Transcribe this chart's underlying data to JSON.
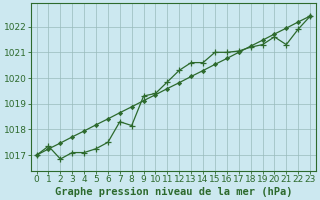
{
  "xlabel": "Graphe pression niveau de la mer (hPa)",
  "background_color": "#cce8f0",
  "plot_bg_color": "#cce8f0",
  "grid_color": "#99bbbb",
  "line_color": "#2d6a2d",
  "marker_color": "#2d6a2d",
  "ylim": [
    1016.4,
    1022.9
  ],
  "yticks": [
    1017,
    1018,
    1019,
    1020,
    1021,
    1022
  ],
  "xticks": [
    0,
    1,
    2,
    3,
    4,
    5,
    6,
    7,
    8,
    9,
    10,
    11,
    12,
    13,
    14,
    15,
    16,
    17,
    18,
    19,
    20,
    21,
    22,
    23
  ],
  "x": [
    0,
    1,
    2,
    3,
    4,
    5,
    6,
    7,
    8,
    9,
    10,
    11,
    12,
    13,
    14,
    15,
    16,
    17,
    18,
    19,
    20,
    21,
    22,
    23
  ],
  "y_main": [
    1017.0,
    1017.35,
    1016.85,
    1017.1,
    1017.1,
    1017.25,
    1017.5,
    1018.3,
    1018.15,
    1019.3,
    1019.4,
    1019.85,
    1020.3,
    1020.6,
    1020.6,
    1021.0,
    1021.0,
    1021.05,
    1021.2,
    1021.3,
    1021.6,
    1021.3,
    1021.9,
    1022.4
  ],
  "y_trend": [
    1017.0,
    1017.24,
    1017.47,
    1017.71,
    1017.94,
    1018.18,
    1018.41,
    1018.65,
    1018.88,
    1019.12,
    1019.35,
    1019.59,
    1019.82,
    1020.06,
    1020.29,
    1020.53,
    1020.76,
    1021.0,
    1021.24,
    1021.47,
    1021.71,
    1021.94,
    1022.18,
    1022.41
  ],
  "tick_fontsize": 6.5,
  "label_fontsize": 7.5
}
